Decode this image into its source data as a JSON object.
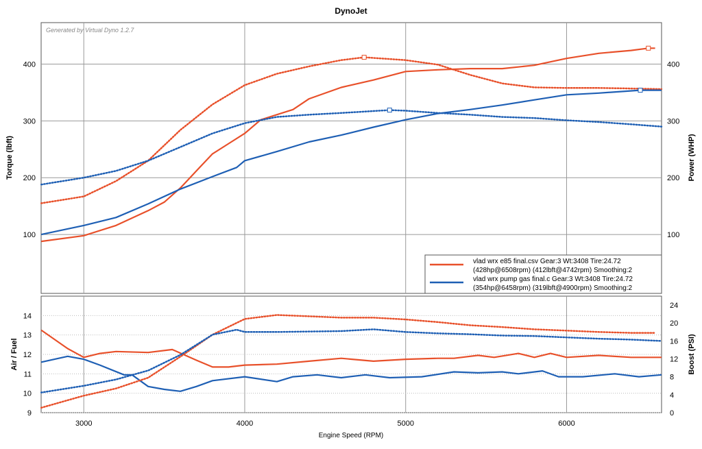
{
  "chart_data": [
    {
      "type": "line",
      "title": "DynoJet",
      "watermark": "Generated by Virtual Dyno 1.2.7",
      "ylabel": "Torque (lbft)",
      "y2label": "Power (WHP)",
      "xlim": [
        2735,
        6590
      ],
      "ylim": [
        0,
        473
      ],
      "yticks": [
        100,
        200,
        300,
        400
      ],
      "y2ticks": [
        100,
        200,
        300,
        400
      ],
      "grid": true,
      "legend": "bottom-right",
      "legend_entries": [
        {
          "line1": "vlad wrx e85 final.csv Gear:3 Wt:3408 Tire:24.72",
          "line2": "(428hp@6508rpm) (412lbft@4742rpm) Smoothing:2",
          "color": "#e8502a"
        },
        {
          "line1": "vlad wrx pump gas final.c Gear:3 Wt:3408 Tire:24.72",
          "line2": "(354hp@6458rpm) (319lbft@4900rpm) Smoothing:2",
          "color": "#1e5fb4"
        }
      ],
      "series": [
        {
          "run": "e85",
          "kind": "torque",
          "style": "dotted",
          "color": "#e8502a",
          "peak": [
            4742,
            412
          ],
          "x": [
            2736,
            3000,
            3200,
            3400,
            3600,
            3800,
            4000,
            4200,
            4400,
            4600,
            4742,
            5000,
            5200,
            5400,
            5600,
            5800,
            6000,
            6200,
            6400,
            6590
          ],
          "y": [
            155,
            167,
            194,
            230,
            284,
            329,
            363,
            383,
            396,
            407,
            412,
            407,
            399,
            381,
            366,
            359,
            358,
            358,
            357,
            356
          ]
        },
        {
          "run": "e85",
          "kind": "power",
          "style": "solid",
          "color": "#e8502a",
          "peak": [
            6508,
            428
          ],
          "x": [
            2736,
            3000,
            3200,
            3400,
            3500,
            3600,
            3700,
            3800,
            3900,
            4000,
            4100,
            4300,
            4400,
            4600,
            4800,
            5000,
            5200,
            5400,
            5600,
            5800,
            6000,
            6200,
            6400,
            6508,
            6550
          ],
          "y": [
            88,
            98,
            116,
            142,
            157,
            182,
            212,
            242,
            260,
            278,
            302,
            320,
            339,
            359,
            372,
            387,
            390,
            392,
            392,
            398,
            410,
            419,
            424,
            428,
            428
          ]
        },
        {
          "run": "pump",
          "kind": "torque",
          "style": "dotted",
          "color": "#1e5fb4",
          "peak": [
            4900,
            319
          ],
          "x": [
            2736,
            3000,
            3200,
            3400,
            3600,
            3800,
            4000,
            4200,
            4400,
            4600,
            4900,
            5000,
            5200,
            5400,
            5600,
            5800,
            6000,
            6200,
            6400,
            6590
          ],
          "y": [
            188,
            200,
            212,
            230,
            254,
            278,
            296,
            307,
            311,
            314,
            319,
            318,
            314,
            311,
            307,
            305,
            301,
            298,
            294,
            290
          ]
        },
        {
          "run": "pump",
          "kind": "power",
          "style": "solid",
          "color": "#1e5fb4",
          "peak": [
            6458,
            354
          ],
          "x": [
            2736,
            3000,
            3200,
            3400,
            3600,
            3800,
            3950,
            4000,
            4200,
            4400,
            4600,
            4800,
            5000,
            5200,
            5400,
            5600,
            5800,
            6000,
            6200,
            6458,
            6590
          ],
          "y": [
            100,
            116,
            130,
            154,
            180,
            202,
            218,
            230,
            246,
            263,
            275,
            289,
            302,
            313,
            320,
            328,
            337,
            346,
            349,
            354,
            354
          ]
        }
      ]
    },
    {
      "type": "line",
      "xlabel": "Engine Speed (RPM)",
      "ylabel": "Air / Fuel",
      "y2label": "Boost (PSI)",
      "xlim": [
        2735,
        6590
      ],
      "ylim": [
        9,
        15
      ],
      "y2lim": [
        0,
        26
      ],
      "xticks": [
        3000,
        4000,
        5000,
        6000
      ],
      "yticks": [
        9,
        10,
        11,
        12,
        13,
        14
      ],
      "y2ticks": [
        0,
        4,
        8,
        12,
        16,
        20,
        24
      ],
      "series": [
        {
          "run": "e85",
          "kind": "afr",
          "style": "solid",
          "color": "#e8502a",
          "x": [
            2736,
            2900,
            3000,
            3100,
            3200,
            3400,
            3550,
            3700,
            3800,
            3900,
            4000,
            4200,
            4400,
            4600,
            4800,
            5000,
            5200,
            5300,
            5450,
            5550,
            5700,
            5800,
            5900,
            6000,
            6200,
            6400,
            6590
          ],
          "y": [
            13.25,
            12.3,
            11.85,
            12.05,
            12.15,
            12.1,
            12.25,
            11.7,
            11.35,
            11.35,
            11.45,
            11.5,
            11.65,
            11.8,
            11.65,
            11.75,
            11.8,
            11.8,
            11.95,
            11.85,
            12.05,
            11.85,
            12.05,
            11.85,
            11.95,
            11.85,
            11.85
          ]
        },
        {
          "run": "pump",
          "kind": "afr",
          "style": "solid",
          "color": "#1e5fb4",
          "x": [
            2736,
            2900,
            3000,
            3100,
            3250,
            3300,
            3400,
            3500,
            3600,
            3700,
            3800,
            4000,
            4200,
            4300,
            4450,
            4600,
            4750,
            4900,
            5100,
            5300,
            5450,
            5600,
            5700,
            5850,
            5950,
            6100,
            6300,
            6450,
            6590
          ],
          "y": [
            11.6,
            11.9,
            11.75,
            11.45,
            10.95,
            10.95,
            10.35,
            10.2,
            10.1,
            10.35,
            10.65,
            10.85,
            10.6,
            10.85,
            10.95,
            10.8,
            10.95,
            10.8,
            10.85,
            11.1,
            11.05,
            11.1,
            11.0,
            11.15,
            10.85,
            10.85,
            11.0,
            10.85,
            10.95
          ]
        },
        {
          "run": "e85",
          "kind": "boost",
          "style": "dotted",
          "color": "#e8502a",
          "x": [
            2736,
            3000,
            3200,
            3400,
            3600,
            3800,
            4000,
            4200,
            4400,
            4600,
            4800,
            5000,
            5200,
            5400,
            5600,
            5800,
            6000,
            6200,
            6400,
            6550
          ],
          "y": [
            1.1,
            3.8,
            5.4,
            7.8,
            12.5,
            17.4,
            20.9,
            21.8,
            21.5,
            21.2,
            21.2,
            20.8,
            20.2,
            19.5,
            19.1,
            18.6,
            18.3,
            18.0,
            17.8,
            17.8
          ]
        },
        {
          "run": "pump",
          "kind": "boost",
          "style": "dotted",
          "color": "#1e5fb4",
          "x": [
            2736,
            3000,
            3200,
            3400,
            3600,
            3800,
            3950,
            4000,
            4200,
            4600,
            4800,
            5000,
            5200,
            5400,
            5600,
            5800,
            6000,
            6200,
            6400,
            6590
          ],
          "y": [
            4.5,
            6.0,
            7.4,
            9.4,
            12.9,
            17.4,
            18.5,
            18.0,
            18.0,
            18.2,
            18.6,
            18.0,
            17.7,
            17.5,
            17.2,
            17.1,
            16.8,
            16.5,
            16.3,
            16.0
          ]
        }
      ]
    }
  ]
}
